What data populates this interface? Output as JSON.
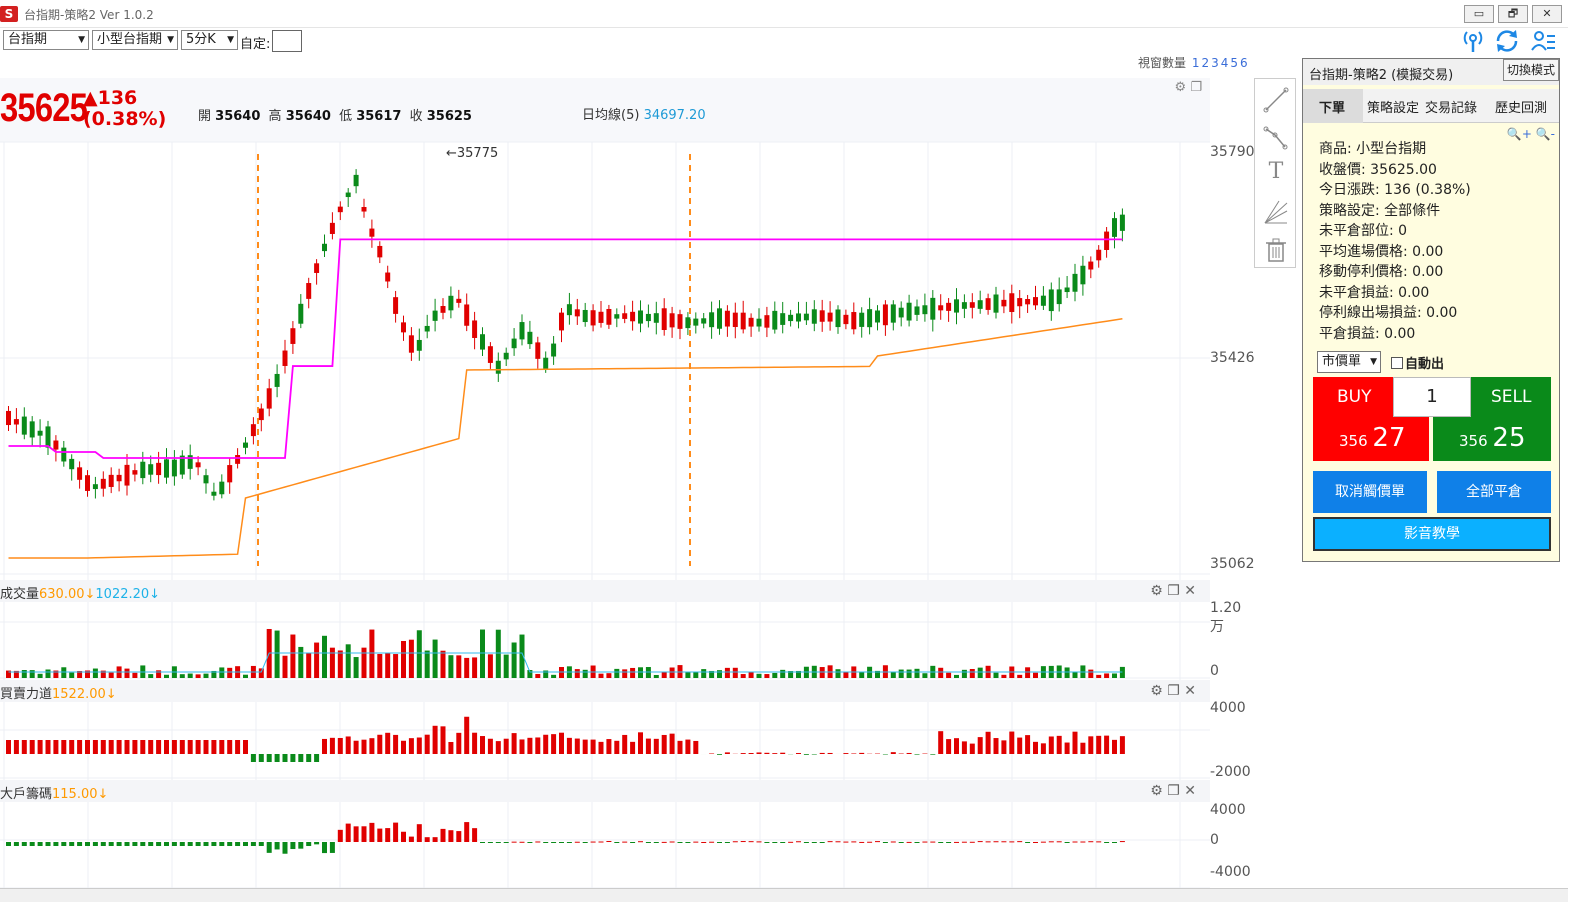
{
  "window": {
    "logo": "S",
    "title": "台指期-策略2 Ver 1.0.2",
    "buttons": [
      "▭",
      "🗗",
      "✕"
    ]
  },
  "toolbar": {
    "market_select": "台指期",
    "product_select": "小型台指期",
    "period_select": "5分K",
    "custom_label": "自定:",
    "custom_value": ""
  },
  "window_count": {
    "label": "視窗數量",
    "options": [
      "1",
      "2",
      "3",
      "4",
      "5",
      "6"
    ]
  },
  "quote": {
    "last": "35625",
    "change": "▲136",
    "change_pct": "(0.38%)",
    "open_label": "開",
    "open": "35640",
    "high_label": "高",
    "high": "35640",
    "low_label": "低",
    "low": "35617",
    "close_label": "收",
    "close": "35625",
    "ma_label": "日均線(5)",
    "ma_value": "34697.20"
  },
  "price_axis": {
    "top": "35790",
    "mid": "35426",
    "bottom": "35062"
  },
  "peak_annotation": "←35775",
  "volume_pane": {
    "title": "成交量",
    "v1": "630.00↓",
    "v2": "1022.20↓",
    "axis_top": "1.20万",
    "axis_bottom": "0"
  },
  "power_pane": {
    "title": "買賣力道",
    "v1": "1522.00↓",
    "axis_top": "4000",
    "axis_bottom": "-2000"
  },
  "big_pane": {
    "title": "大戶籌碼",
    "v1": "115.00↓",
    "axis_top": "4000",
    "axis_mid": "0",
    "axis_bottom": "-4000"
  },
  "order_panel": {
    "title": "台指期-策略2 (模擬交易)",
    "mode_button": "切換模式",
    "tabs": [
      "下單",
      "策略設定",
      "交易記錄",
      "歷史回測"
    ],
    "zoom": "🔍+ 🔍-",
    "info": [
      "商品: 小型台指期",
      "收盤價: 35625.00",
      "今日漲跌: 136 (0.38%)",
      "策略設定: 全部條件",
      "未平倉部位: 0",
      "平均進場價格: 0.00",
      "移動停利價格: 0.00",
      "未平倉損益: 0.00",
      "停利線出場損益: 0.00",
      "平倉損益: 0.00"
    ],
    "order_type": "市價單",
    "auto_exit": "自動出",
    "buy_label": "BUY",
    "sell_label": "SELL",
    "quantity": "1",
    "buy_price_prefix": "356",
    "buy_price_suffix": "27",
    "sell_price_prefix": "356",
    "sell_price_suffix": "25",
    "cancel_button": "取消觸價單",
    "close_all_button": "全部平倉",
    "video_button": "影音教學"
  },
  "colors": {
    "up": "#e00000",
    "down": "#0a8a1a",
    "ma": "#ff8c1a",
    "stop_up": "#ff00ff",
    "stop_down": "#33dd33",
    "vol_ma": "#33bbee"
  }
}
